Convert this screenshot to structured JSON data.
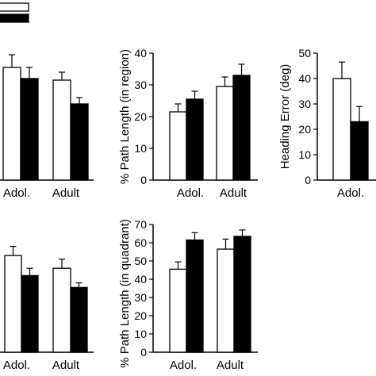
{
  "chart_data": [
    {
      "type": "bar",
      "title": "",
      "categories": [
        "Adol.",
        "Adult"
      ],
      "series": [
        {
          "fill": "#ffffff",
          "values": [
            35.5,
            31.5
          ],
          "err": [
            4.0,
            2.5
          ]
        },
        {
          "fill": "#000000",
          "values": [
            32.0,
            24.0
          ],
          "err": [
            3.5,
            2.0
          ]
        }
      ],
      "ylabel": "",
      "yticks": [],
      "ylim": [
        0,
        40
      ],
      "grid": false
    },
    {
      "type": "bar",
      "title": "",
      "categories": [
        "Adol.",
        "Adult"
      ],
      "series": [
        {
          "fill": "#ffffff",
          "values": [
            21.5,
            29.5
          ],
          "err": [
            2.5,
            3.0
          ]
        },
        {
          "fill": "#000000",
          "values": [
            25.5,
            33.0
          ],
          "err": [
            2.5,
            3.5
          ]
        }
      ],
      "ylabel": "% Path Length (in region)",
      "yticks": [
        "0",
        "10",
        "20",
        "30",
        "40"
      ],
      "ylim": [
        0,
        40
      ],
      "grid": false
    },
    {
      "type": "bar",
      "title": "",
      "categories": [
        "Adol."
      ],
      "series": [
        {
          "fill": "#ffffff",
          "values": [
            40.0
          ],
          "err": [
            6.5
          ]
        },
        {
          "fill": "#000000",
          "values": [
            23.0
          ],
          "err": [
            6.0
          ]
        }
      ],
      "ylabel": "Heading Error (deg)",
      "yticks": [
        "0",
        "10",
        "20",
        "30",
        "40",
        "50"
      ],
      "ylim": [
        0,
        50
      ],
      "grid": false
    },
    {
      "type": "bar",
      "title": "",
      "categories": [
        "Adol.",
        "Adult"
      ],
      "series": [
        {
          "fill": "#ffffff",
          "values": [
            53.0,
            46.0
          ],
          "err": [
            5.0,
            5.0
          ]
        },
        {
          "fill": "#000000",
          "values": [
            42.0,
            35.5
          ],
          "err": [
            4.0,
            2.5
          ]
        }
      ],
      "ylabel": "",
      "yticks": [],
      "ylim": [
        0,
        70
      ],
      "grid": false
    },
    {
      "type": "bar",
      "title": "",
      "categories": [
        "Adol.",
        "Adult"
      ],
      "series": [
        {
          "fill": "#ffffff",
          "values": [
            45.5,
            56.5
          ],
          "err": [
            4.0,
            5.5
          ]
        },
        {
          "fill": "#000000",
          "values": [
            61.5,
            63.5
          ],
          "err": [
            4.0,
            3.5
          ]
        }
      ],
      "ylabel": "% Path Length (in quadrant)",
      "yticks": [
        "0",
        "10",
        "20",
        "30",
        "40",
        "50",
        "60",
        "70"
      ],
      "ylim": [
        0,
        70
      ],
      "grid": false
    }
  ],
  "legend": {
    "entries": [
      {
        "fill": "#ffffff"
      },
      {
        "fill": "#000000"
      }
    ]
  }
}
